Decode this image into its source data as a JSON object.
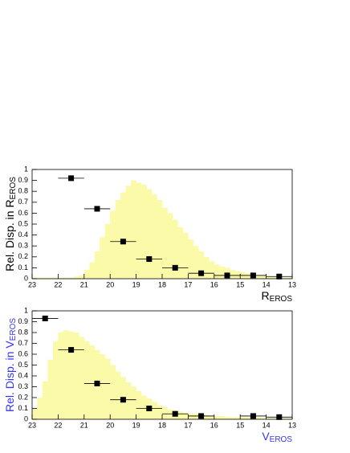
{
  "chart_data": [
    {
      "type": "histogram",
      "ylabel": {
        "main": "Rel. Disp. in R",
        "sub": "EROS"
      },
      "xlabel": {
        "main": "R",
        "sub": "EROS"
      },
      "label_color": "#000000",
      "color": "#fafaa8",
      "bins": [
        23,
        22.8,
        22.6,
        22.4,
        22.2,
        22,
        21.8,
        21.6,
        21.4,
        21.2,
        21,
        20.8,
        20.6,
        20.4,
        20.2,
        20,
        19.8,
        19.6,
        19.4,
        19.2,
        19,
        18.8,
        18.6,
        18.4,
        18.2,
        18,
        17.8,
        17.6,
        17.4,
        17.2,
        17,
        16.8,
        16.6,
        16.4,
        16.2,
        16,
        15.8,
        15.6,
        15.4,
        15.2,
        15,
        14.8,
        14.6,
        14.4,
        14.2,
        14,
        13.8,
        13.6,
        13.4,
        13.2,
        13
      ],
      "values": [
        0.01,
        0.01,
        0.01,
        0.01,
        0.01,
        0.01,
        0.01,
        0.01,
        0.02,
        0.03,
        0.08,
        0.15,
        0.25,
        0.38,
        0.5,
        0.62,
        0.72,
        0.79,
        0.85,
        0.9,
        0.88,
        0.86,
        0.82,
        0.77,
        0.72,
        0.65,
        0.6,
        0.54,
        0.47,
        0.42,
        0.36,
        0.3,
        0.25,
        0.2,
        0.16,
        0.13,
        0.11,
        0.1,
        0.08,
        0.07,
        0.06,
        0.05,
        0.04,
        0.03,
        0.03,
        0.02,
        0.02,
        0.01,
        0.01,
        0.01
      ],
      "points": {
        "color": "#000000",
        "x": [
          21.5,
          20.5,
          19.5,
          18.5,
          17.5,
          16.5,
          15.5,
          14.5,
          13.5
        ],
        "values": [
          0.92,
          0.64,
          0.34,
          0.18,
          0.1,
          0.05,
          0.03,
          0.03,
          0.02
        ],
        "x_err": [
          0.5,
          0.5,
          0.5,
          0.5,
          0.5,
          0.5,
          0.5,
          0.5,
          0.5
        ]
      },
      "xlim": [
        23,
        13
      ],
      "xticks": [
        23,
        22,
        21,
        20,
        19,
        18,
        17,
        16,
        15,
        14,
        13
      ],
      "ylim": [
        0,
        1
      ],
      "yticks": [
        0,
        0.1,
        0.2,
        0.3,
        0.4,
        0.5,
        0.6,
        0.7,
        0.8,
        0.9,
        1
      ]
    },
    {
      "type": "histogram",
      "ylabel": {
        "main": "Rel. Disp. in V",
        "sub": "EROS"
      },
      "xlabel": {
        "main": "V",
        "sub": "EROS"
      },
      "label_color": "#3333ff",
      "color": "#fafaa8",
      "bins": [
        23,
        22.8,
        22.6,
        22.4,
        22.2,
        22,
        21.8,
        21.6,
        21.4,
        21.2,
        21,
        20.8,
        20.6,
        20.4,
        20.2,
        20,
        19.8,
        19.6,
        19.4,
        19.2,
        19,
        18.8,
        18.6,
        18.4,
        18.2,
        18,
        17.8,
        17.6,
        17.4,
        17.2,
        17,
        16.8,
        16.6,
        16.4,
        16.2,
        16,
        15.8,
        15.6,
        15.4,
        15.2,
        15,
        14.8,
        14.6,
        14.4,
        14.2,
        14,
        13.8,
        13.6,
        13.4,
        13.2,
        13
      ],
      "values": [
        0.1,
        0.2,
        0.35,
        0.55,
        0.72,
        0.8,
        0.82,
        0.81,
        0.8,
        0.76,
        0.72,
        0.68,
        0.64,
        0.6,
        0.56,
        0.5,
        0.44,
        0.39,
        0.34,
        0.3,
        0.26,
        0.22,
        0.19,
        0.16,
        0.13,
        0.11,
        0.09,
        0.08,
        0.07,
        0.06,
        0.05,
        0.05,
        0.04,
        0.04,
        0.03,
        0.03,
        0.03,
        0.02,
        0.02,
        0.02,
        0.02,
        0.02,
        0.02,
        0.02,
        0.01,
        0.01,
        0.01,
        0.01,
        0.01,
        0.01
      ],
      "points": {
        "color": "#000000",
        "x": [
          22.5,
          21.5,
          20.5,
          19.5,
          18.5,
          17.5,
          16.5,
          14.5,
          13.5
        ],
        "values": [
          0.93,
          0.64,
          0.33,
          0.18,
          0.1,
          0.05,
          0.03,
          0.03,
          0.02
        ],
        "x_err": [
          0.5,
          0.5,
          0.5,
          0.5,
          0.5,
          0.5,
          0.5,
          0.5,
          0.5
        ]
      },
      "xlim": [
        23,
        13
      ],
      "xticks": [
        23,
        22,
        21,
        20,
        19,
        18,
        17,
        16,
        15,
        14,
        13
      ],
      "ylim": [
        0,
        1
      ],
      "yticks": [
        0,
        0.1,
        0.2,
        0.3,
        0.4,
        0.5,
        0.6,
        0.7,
        0.8,
        0.9,
        1
      ]
    }
  ]
}
